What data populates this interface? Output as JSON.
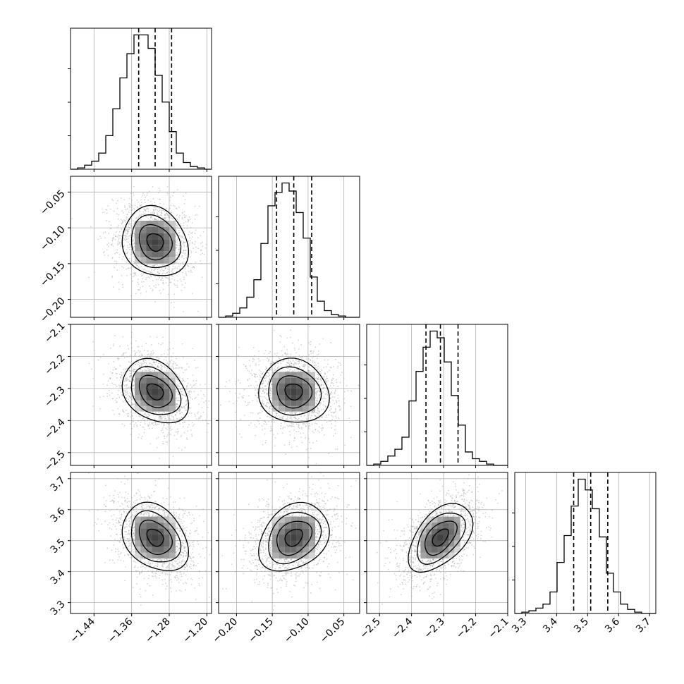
{
  "chart_data": {
    "type": "corner",
    "grid": true,
    "params": [
      {
        "range": [
          -1.49,
          -1.19
        ],
        "ticks": [
          -1.44,
          -1.36,
          -1.28,
          -1.2
        ],
        "tick_labels": [
          "−1.44",
          "−1.36",
          "−1.28",
          "−1.20"
        ],
        "quantiles": [
          -1.345,
          -1.31,
          -1.275
        ]
      },
      {
        "range": [
          -0.225,
          -0.028
        ],
        "ticks": [
          -0.2,
          -0.15,
          -0.1,
          -0.05
        ],
        "tick_labels": [
          "−0.20",
          "−0.15",
          "−0.10",
          "−0.05"
        ],
        "quantiles": [
          -0.144,
          -0.12,
          -0.095
        ]
      },
      {
        "range": [
          -2.54,
          -2.1
        ],
        "ticks": [
          -2.5,
          -2.4,
          -2.3,
          -2.2,
          -2.1
        ],
        "tick_labels": [
          "−2.5",
          "−2.4",
          "−2.3",
          "−2.2",
          "−2.1"
        ],
        "quantiles": [
          -2.355,
          -2.31,
          -2.255
        ]
      },
      {
        "range": [
          3.265,
          3.72
        ],
        "ticks": [
          3.3,
          3.4,
          3.5,
          3.6,
          3.7
        ],
        "tick_labels": [
          "3.3",
          "3.4",
          "3.5",
          "3.6",
          "3.7"
        ],
        "quantiles": [
          3.455,
          3.51,
          3.565
        ]
      }
    ],
    "histograms": [
      [
        0,
        1,
        3,
        6,
        12,
        25,
        45,
        68,
        86,
        100,
        100,
        90,
        70,
        50,
        28,
        12,
        5,
        2,
        1,
        0
      ],
      [
        0,
        1,
        3,
        7,
        15,
        28,
        55,
        83,
        93,
        100,
        94,
        78,
        59,
        30,
        12,
        5,
        2,
        1,
        0,
        0
      ],
      [
        0,
        1,
        3,
        7,
        12,
        21,
        48,
        70,
        88,
        100,
        95,
        77,
        52,
        30,
        10,
        5,
        3,
        1,
        0,
        0
      ],
      [
        0,
        1,
        2,
        4,
        7,
        16,
        38,
        58,
        80,
        100,
        92,
        78,
        57,
        30,
        16,
        7,
        3,
        1,
        0,
        0
      ]
    ],
    "correlations": {
      "1-0": -0.15,
      "2-0": -0.3,
      "2-1": -0.08,
      "3-0": -0.3,
      "3-1": 0.28,
      "3-2": 0.5
    },
    "colors": {
      "line": "#000000",
      "grid": "#b0b0b0",
      "points": "#a0a0a0"
    }
  }
}
